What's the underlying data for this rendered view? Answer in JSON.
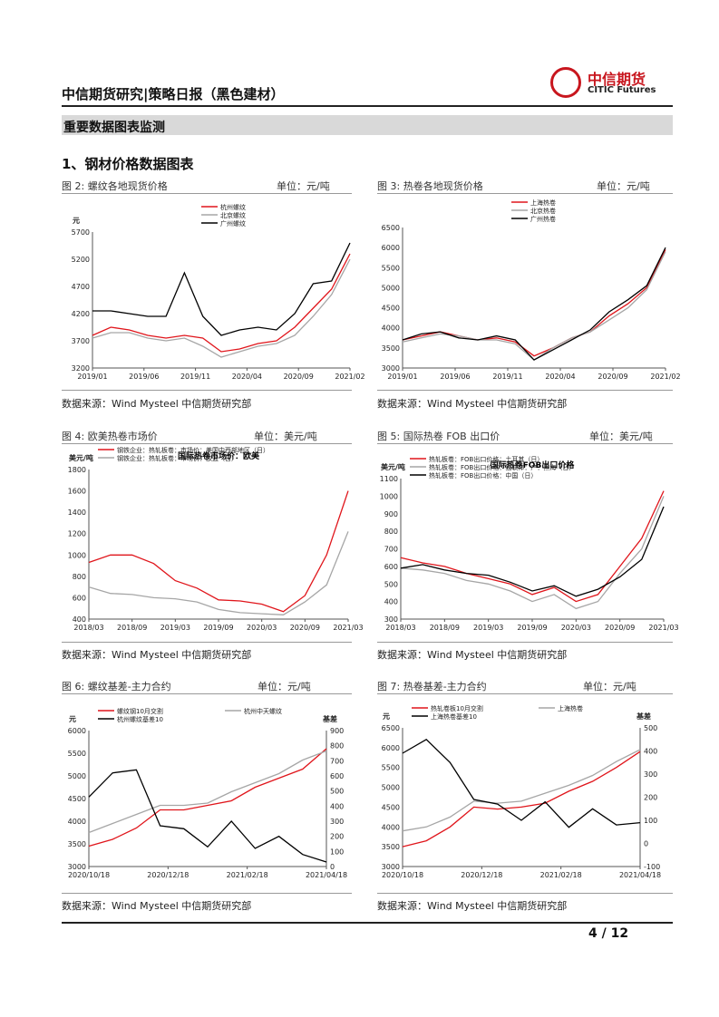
{
  "header": {
    "title": "中信期货研究|策略日报（黑色建材）",
    "logo_cn": "中信期货",
    "logo_en": "CITIC Futures"
  },
  "section": {
    "title": "重要数据图表监测",
    "subtitle": "1、钢材价格数据图表"
  },
  "source_text": "数据来源：Wind Mysteel 中信期货研究部",
  "page": "4 / 12",
  "colors": {
    "red": "#e0151b",
    "gray": "#a6a6a6",
    "black": "#000000"
  },
  "figures": [
    {
      "caption": "图 2:  螺纹各地现货价格",
      "unit": "单位：元/吨"
    },
    {
      "caption": "图 3:  热卷各地现货价格",
      "unit": "单位：元/吨"
    },
    {
      "caption": "图 4:  欧美热卷市场价",
      "unit": "单位：美元/吨"
    },
    {
      "caption": "图 5:  国际热卷 FOB 出口价",
      "unit": "单位：美元/吨"
    },
    {
      "caption": "图 6:    螺纹基差-主力合约",
      "unit": "单位：元/吨"
    },
    {
      "caption": "图 7:  热卷基差-主力合约",
      "unit": "单位：元/吨"
    }
  ],
  "chart_data": [
    {
      "type": "line",
      "ylabel": "元",
      "ylim": [
        3200,
        5700
      ],
      "yticks": [
        "5700",
        "5200",
        "4700",
        "4200",
        "3700",
        "3200"
      ],
      "xticks": [
        "2019/01",
        "2019/06",
        "2019/11",
        "2020/04",
        "2020/09",
        "2021/02"
      ],
      "x": [
        "2019/01",
        "2019/03",
        "2019/05",
        "2019/07",
        "2019/09",
        "2019/11",
        "2020/01",
        "2020/03",
        "2020/05",
        "2020/07",
        "2020/09",
        "2020/11",
        "2021/01",
        "2021/02",
        "2021/03"
      ],
      "series": [
        {
          "name": "杭州螺纹",
          "color": "#e0151b",
          "values": [
            3800,
            3950,
            3900,
            3800,
            3750,
            3800,
            3750,
            3500,
            3550,
            3650,
            3700,
            3950,
            4300,
            4650,
            5300
          ]
        },
        {
          "name": "北京螺纹",
          "color": "#a6a6a6",
          "values": [
            3750,
            3850,
            3850,
            3750,
            3700,
            3750,
            3600,
            3400,
            3500,
            3600,
            3650,
            3800,
            4150,
            4550,
            5200
          ]
        },
        {
          "name": "广州螺纹",
          "color": "#000000",
          "values": [
            4250,
            4250,
            4200,
            4150,
            4150,
            4950,
            4150,
            3800,
            3900,
            3950,
            3900,
            4200,
            4750,
            4800,
            5500
          ]
        }
      ]
    },
    {
      "type": "line",
      "ylim": [
        3000,
        6500
      ],
      "yticks": [
        "6500",
        "6000",
        "5500",
        "5000",
        "4500",
        "4000",
        "3500",
        "3000"
      ],
      "xticks": [
        "2019/01",
        "2019/06",
        "2019/11",
        "2020/04",
        "2020/09",
        "2021/02"
      ],
      "x": [
        "2019/01",
        "2019/03",
        "2019/05",
        "2019/07",
        "2019/09",
        "2019/11",
        "2020/01",
        "2020/03",
        "2020/05",
        "2020/07",
        "2020/09",
        "2020/11",
        "2021/01",
        "2021/02",
        "2021/03"
      ],
      "series": [
        {
          "name": "上海热卷",
          "color": "#e0151b",
          "values": [
            3700,
            3800,
            3900,
            3800,
            3700,
            3750,
            3650,
            3300,
            3500,
            3750,
            3900,
            4300,
            4600,
            5000,
            5950
          ]
        },
        {
          "name": "北京热卷",
          "color": "#a6a6a6",
          "values": [
            3650,
            3750,
            3850,
            3800,
            3700,
            3700,
            3600,
            3200,
            3500,
            3750,
            3900,
            4200,
            4500,
            4950,
            5900
          ]
        },
        {
          "name": "广州热卷",
          "color": "#000000",
          "values": [
            3700,
            3850,
            3900,
            3750,
            3700,
            3800,
            3700,
            3200,
            3450,
            3700,
            3950,
            4400,
            4700,
            5050,
            6000
          ]
        }
      ]
    },
    {
      "type": "line",
      "ylabel": "美元/吨",
      "title": "国际热卷市场价：欧美",
      "ylim": [
        400,
        1800
      ],
      "yticks": [
        "1800",
        "1600",
        "1400",
        "1200",
        "1000",
        "800",
        "600",
        "400"
      ],
      "xticks": [
        "2018/03",
        "2018/09",
        "2019/03",
        "2019/09",
        "2020/03",
        "2020/09",
        "2021/03"
      ],
      "x": [
        "2018/03",
        "2018/06",
        "2018/09",
        "2018/12",
        "2019/03",
        "2019/06",
        "2019/09",
        "2019/12",
        "2020/03",
        "2020/06",
        "2020/09",
        "2020/12",
        "2021/03"
      ],
      "series": [
        {
          "name": "钢铁企业：热轧板卷：市场价：美国中西部地区（日）",
          "color": "#e0151b",
          "values": [
            930,
            1000,
            1000,
            920,
            760,
            690,
            580,
            570,
            540,
            470,
            620,
            1000,
            1600
          ]
        },
        {
          "name": "钢铁企业：热轧板卷：市场价：欧盟（日）",
          "color": "#a6a6a6",
          "values": [
            700,
            640,
            630,
            600,
            590,
            560,
            490,
            460,
            450,
            440,
            560,
            720,
            1220
          ]
        }
      ]
    },
    {
      "type": "line",
      "title": "国际热卷FOB出口价格",
      "ylabel": "美元/吨",
      "ylim": [
        300,
        1100
      ],
      "yticks": [
        "1100",
        "1000",
        "900",
        "800",
        "700",
        "600",
        "500",
        "400",
        "300"
      ],
      "xticks": [
        "2018/03",
        "2018/09",
        "2019/03",
        "2019/09",
        "2020/03",
        "2020/09",
        "2021/03"
      ],
      "x": [
        "2018/03",
        "2018/06",
        "2018/09",
        "2018/12",
        "2019/03",
        "2019/06",
        "2019/09",
        "2019/12",
        "2020/03",
        "2020/06",
        "2020/09",
        "2020/12",
        "2021/03"
      ],
      "series": [
        {
          "name": "热轧板卷：FOB出口价格：土耳其（日）",
          "color": "#e0151b",
          "values": [
            650,
            620,
            600,
            560,
            530,
            500,
            440,
            480,
            400,
            440,
            600,
            760,
            1030
          ]
        },
        {
          "name": "热轧板卷：FOB出口价格：独联体：产：黑海（日）",
          "color": "#a6a6a6",
          "values": [
            590,
            580,
            560,
            520,
            500,
            460,
            400,
            440,
            360,
            400,
            560,
            700,
            1000
          ]
        },
        {
          "name": "热轧板卷：FOB出口价格：中国（日）",
          "color": "#000000",
          "values": [
            590,
            610,
            580,
            560,
            550,
            510,
            460,
            490,
            430,
            470,
            540,
            640,
            940
          ]
        }
      ]
    },
    {
      "type": "line",
      "ylabel": "元",
      "y2label": "基差",
      "ylim": [
        3000,
        6000
      ],
      "y2lim": [
        0,
        900
      ],
      "yticks": [
        "6000",
        "5500",
        "5000",
        "4500",
        "4000",
        "3500",
        "3000"
      ],
      "y2ticks": [
        "900",
        "800",
        "700",
        "600",
        "500",
        "400",
        "300",
        "200",
        "100",
        "0"
      ],
      "xticks": [
        "2020/10/18",
        "2020/12/18",
        "2021/02/18",
        "2021/04/18"
      ],
      "x": [
        "2020/10/18",
        "2020/11/08",
        "2020/11/28",
        "2020/12/18",
        "2021/01/08",
        "2021/01/28",
        "2021/02/18",
        "2021/03/08",
        "2021/03/28",
        "2021/04/18",
        "2021/05/08"
      ],
      "series": [
        {
          "name": "螺纹钢10月交割",
          "axis": "left",
          "color": "#e0151b",
          "values": [
            3450,
            3600,
            3850,
            4250,
            4250,
            4350,
            4450,
            4750,
            4950,
            5150,
            5600
          ]
        },
        {
          "name": "杭州中天螺纹",
          "axis": "left",
          "color": "#a6a6a6",
          "values": [
            3750,
            3950,
            4150,
            4350,
            4350,
            4400,
            4650,
            4850,
            5050,
            5350,
            5550
          ]
        },
        {
          "name": "杭州螺纹基差10",
          "axis": "right",
          "color": "#000000",
          "values": [
            460,
            620,
            640,
            270,
            250,
            130,
            300,
            120,
            200,
            80,
            30
          ]
        }
      ]
    },
    {
      "type": "line",
      "ylabel": "元",
      "y2label": "基差",
      "ylim": [
        3000,
        6500
      ],
      "y2lim": [
        -100,
        500
      ],
      "yticks": [
        "6500",
        "6000",
        "5500",
        "5000",
        "4500",
        "4000",
        "3500",
        "3000"
      ],
      "y2ticks": [
        "500",
        "400",
        "300",
        "200",
        "100",
        "0",
        "-100"
      ],
      "xticks": [
        "2020/10/18",
        "2020/12/18",
        "2021/02/18",
        "2021/04/18"
      ],
      "x": [
        "2020/10/18",
        "2020/11/08",
        "2020/11/28",
        "2020/12/18",
        "2021/01/08",
        "2021/01/28",
        "2021/02/18",
        "2021/03/08",
        "2021/03/28",
        "2021/04/18",
        "2021/05/08"
      ],
      "series": [
        {
          "name": "热轧卷板10月交割",
          "axis": "left",
          "color": "#e0151b",
          "values": [
            3500,
            3650,
            4000,
            4500,
            4450,
            4500,
            4600,
            4900,
            5150,
            5500,
            5900
          ]
        },
        {
          "name": "上海热卷",
          "axis": "left",
          "color": "#a6a6a6",
          "values": [
            3900,
            4000,
            4250,
            4650,
            4600,
            4650,
            4850,
            5050,
            5300,
            5650,
            5950
          ]
        },
        {
          "name": "上海热卷基差10",
          "axis": "right",
          "color": "#000000",
          "values": [
            390,
            450,
            350,
            190,
            170,
            100,
            180,
            70,
            150,
            80,
            90
          ]
        }
      ]
    }
  ]
}
